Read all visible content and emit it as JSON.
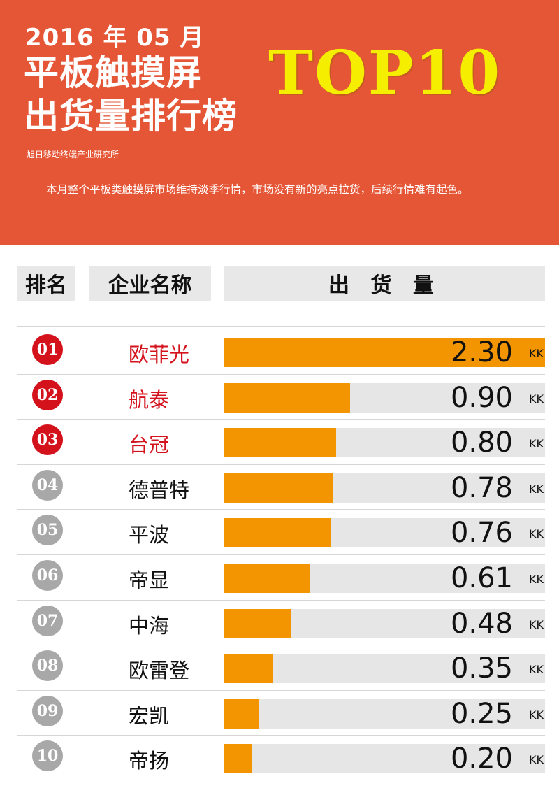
{
  "header": {
    "date": "2016 年 05 月",
    "title_line1": "平板触摸屏",
    "title_line2": "出货量排行榜",
    "top10": "TOP10",
    "source": "旭日移动终端产业研究所",
    "summary": "本月整个平板类触摸屏市场维持淡季行情，市场没有新的亮点拉货，后续行情难有起色。",
    "bg_color": "#e55636"
  },
  "table": {
    "col_rank": "排名",
    "col_name": "企业名称",
    "col_value": "出 货 量"
  },
  "chart_data": {
    "type": "bar",
    "orientation": "horizontal",
    "unit": "KK",
    "xlim": [
      0,
      2.3
    ],
    "bar_color": "#f29500",
    "track_color": "#e6e6e6",
    "rows": [
      {
        "rank": "01",
        "name": "欧菲光",
        "value": 2.3,
        "label": "2.30"
      },
      {
        "rank": "02",
        "name": "航泰",
        "value": 0.9,
        "label": "0.90"
      },
      {
        "rank": "03",
        "name": "台冠",
        "value": 0.8,
        "label": "0.80"
      },
      {
        "rank": "04",
        "name": "德普特",
        "value": 0.78,
        "label": "0.78"
      },
      {
        "rank": "05",
        "name": "平波",
        "value": 0.76,
        "label": "0.76"
      },
      {
        "rank": "06",
        "name": "帝显",
        "value": 0.61,
        "label": "0.61"
      },
      {
        "rank": "07",
        "name": "中海",
        "value": 0.48,
        "label": "0.48"
      },
      {
        "rank": "08",
        "name": "欧雷登",
        "value": 0.35,
        "label": "0.35"
      },
      {
        "rank": "09",
        "name": "宏凯",
        "value": 0.25,
        "label": "0.25"
      },
      {
        "rank": "10",
        "name": "帝扬",
        "value": 0.2,
        "label": "0.20"
      }
    ]
  }
}
